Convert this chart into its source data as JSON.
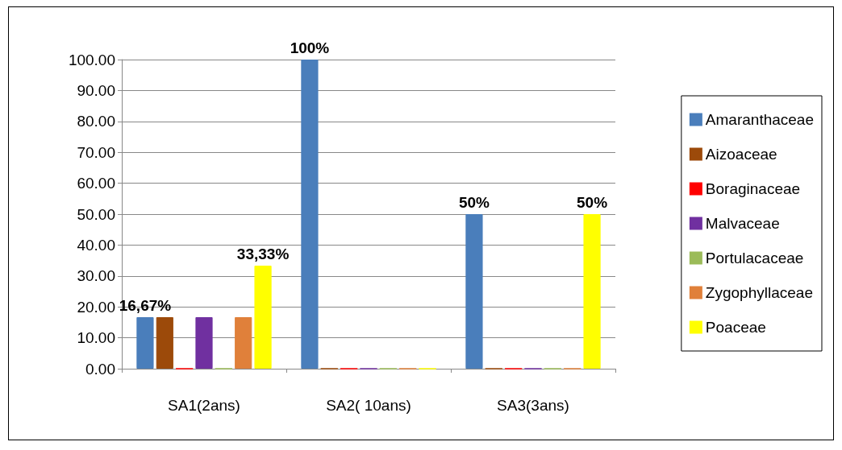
{
  "chart_data": {
    "type": "bar",
    "categories": [
      "SA1(2ans)",
      "SA2( 10ans)",
      "SA3(3ans)"
    ],
    "series": [
      {
        "name": "Amaranthaceae",
        "color": "#4a7ebb",
        "values": [
          16.67,
          100,
          50
        ],
        "value_labels": [
          "16,67%",
          "100%",
          "50%"
        ]
      },
      {
        "name": "Aizoaceae",
        "color": "#9c4a0a",
        "values": [
          16.67,
          0,
          0
        ]
      },
      {
        "name": "Boraginaceae",
        "color": "#ff0000",
        "values": [
          0,
          0,
          0
        ]
      },
      {
        "name": "Malvaceae",
        "color": "#7030a0",
        "values": [
          16.67,
          0,
          0
        ]
      },
      {
        "name": "Portulacaceae",
        "color": "#9bbb59",
        "values": [
          0,
          0,
          0
        ]
      },
      {
        "name": "Zygophyllaceae",
        "color": "#e0803a",
        "values": [
          16.67,
          0,
          0
        ]
      },
      {
        "name": "Poaceae",
        "color": "#ffff00",
        "values": [
          33.33,
          0,
          50
        ],
        "value_labels": [
          "33,33%",
          null,
          "50%"
        ]
      }
    ],
    "ylim": [
      0,
      100
    ],
    "yticks": [
      {
        "value": 0,
        "label": "0.00"
      },
      {
        "value": 10,
        "label": "10.00"
      },
      {
        "value": 20,
        "label": "20.00"
      },
      {
        "value": 30,
        "label": "30.00"
      },
      {
        "value": 40,
        "label": "40.00"
      },
      {
        "value": 50,
        "label": "50.00"
      },
      {
        "value": 60,
        "label": "60.00"
      },
      {
        "value": 70,
        "label": "70.00"
      },
      {
        "value": 80,
        "label": "80.00"
      },
      {
        "value": 90,
        "label": "90.00"
      },
      {
        "value": 100,
        "label": "100.00"
      }
    ],
    "grid": "y",
    "legend": "right"
  }
}
